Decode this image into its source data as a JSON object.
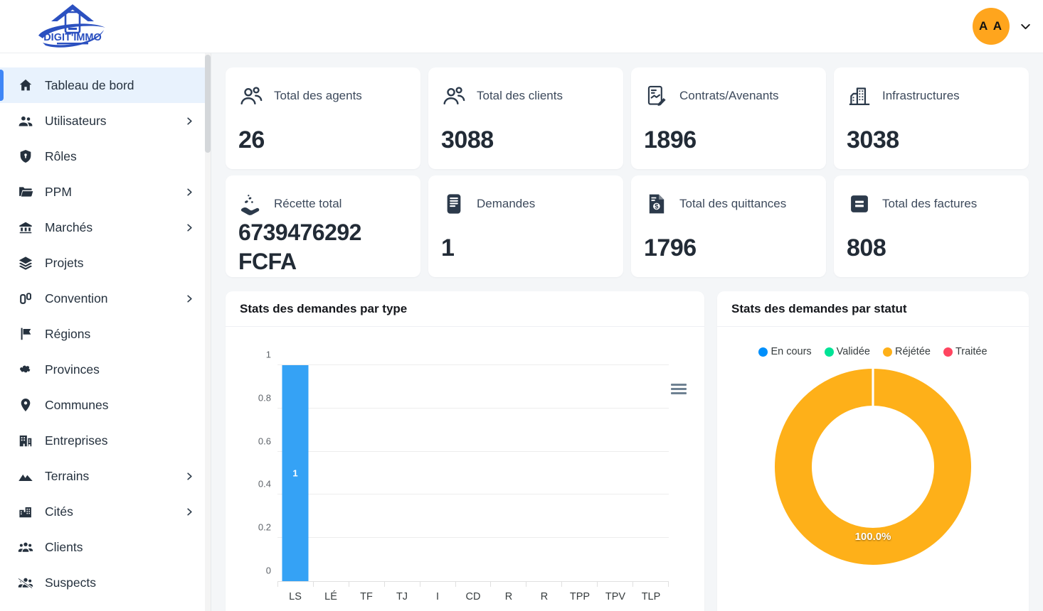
{
  "header": {
    "logo_text": "DIGIT'IMMO",
    "avatar_initials": "A A"
  },
  "colors": {
    "accent_blue": "#3f86f6",
    "active_item_bg": "#e8f2fd",
    "avatar_bg": "#ffa51d",
    "logo_blue": "#2b50c0",
    "bar_blue": "#35a2f5"
  },
  "sidebar": {
    "items": [
      {
        "label": "Tableau de bord",
        "icon": "home",
        "active": true,
        "chevron": false
      },
      {
        "label": "Utilisateurs",
        "icon": "users",
        "active": false,
        "chevron": true
      },
      {
        "label": "Rôles",
        "icon": "shield",
        "active": false,
        "chevron": false
      },
      {
        "label": "PPM",
        "icon": "folder",
        "active": false,
        "chevron": true
      },
      {
        "label": "Marchés",
        "icon": "bank",
        "active": false,
        "chevron": true
      },
      {
        "label": "Projets",
        "icon": "layers",
        "active": false,
        "chevron": false
      },
      {
        "label": "Convention",
        "icon": "convention",
        "active": false,
        "chevron": true
      },
      {
        "label": "Régions",
        "icon": "flag",
        "active": false,
        "chevron": false
      },
      {
        "label": "Provinces",
        "icon": "map",
        "active": false,
        "chevron": false
      },
      {
        "label": "Communes",
        "icon": "pin",
        "active": false,
        "chevron": false
      },
      {
        "label": "Entreprises",
        "icon": "building",
        "active": false,
        "chevron": false
      },
      {
        "label": "Terrains",
        "icon": "mountains",
        "active": false,
        "chevron": true
      },
      {
        "label": "Cités",
        "icon": "city",
        "active": false,
        "chevron": true
      },
      {
        "label": "Clients",
        "icon": "group",
        "active": false,
        "chevron": false
      },
      {
        "label": "Suspects",
        "icon": "group-slash",
        "active": false,
        "chevron": false
      },
      {
        "label": "",
        "icon": "group",
        "active": false,
        "chevron": false,
        "partial": true
      }
    ]
  },
  "stats_cards": [
    {
      "icon": "users-outline",
      "label": "Total des agents",
      "value": "26"
    },
    {
      "icon": "users-outline",
      "label": "Total des clients",
      "value": "3088"
    },
    {
      "icon": "contract",
      "label": "Contrats/Avenants",
      "value": "1896"
    },
    {
      "icon": "buildings-outline",
      "label": "Infrastructures",
      "value": "3038"
    },
    {
      "icon": "hand-coins",
      "label": "Récette total",
      "value": "6739476292 FCFA",
      "wrap": true
    },
    {
      "icon": "document",
      "label": "Demandes",
      "value": "1"
    },
    {
      "icon": "receipt-dollar",
      "label": "Total des quittances",
      "value": "1796"
    },
    {
      "icon": "invoice-equals",
      "label": "Total des factures",
      "value": "808"
    }
  ],
  "chart_data": [
    {
      "type": "bar",
      "title": "Stats des demandes par type",
      "categories": [
        "LS",
        "LÉ",
        "TF",
        "TJ",
        "I",
        "CD",
        "R",
        "R",
        "TPP",
        "TPV",
        "TLP"
      ],
      "values": [
        1,
        0,
        0,
        0,
        0,
        0,
        0,
        0,
        0,
        0,
        0
      ],
      "ylim": [
        0,
        1
      ],
      "yticks": [
        1,
        0.8,
        0.6,
        0.4,
        0.2,
        0
      ],
      "bar_color": "#35a2f5",
      "grid": true,
      "legend_position": "none",
      "toolbar": "menu"
    },
    {
      "type": "pie",
      "title": "Stats des demandes par statut",
      "legend_position": "top",
      "legend": [
        {
          "label": "En cours",
          "color": "#008FFB"
        },
        {
          "label": "Validée",
          "color": "#00E396"
        },
        {
          "label": "Réjétée",
          "color": "#FEB019"
        },
        {
          "label": "Traitée",
          "color": "#FF4560"
        }
      ],
      "slices": [
        {
          "label": "Réjétée",
          "value": 100.0,
          "color": "#FEB019",
          "data_label": "100.0%"
        }
      ]
    }
  ]
}
